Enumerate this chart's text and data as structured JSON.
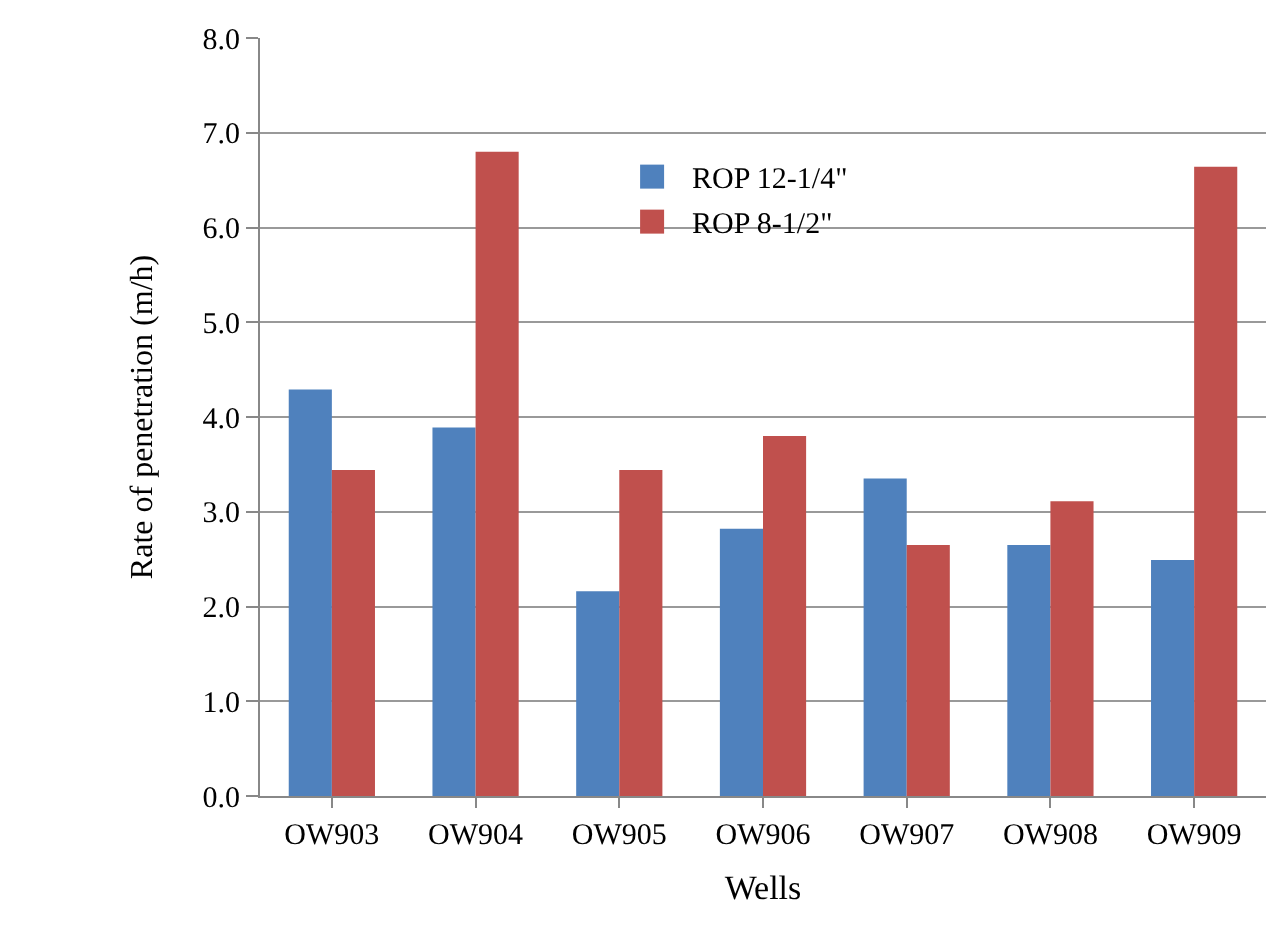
{
  "chart_data": {
    "type": "bar",
    "xlabel": "Wells",
    "ylabel": "Rate of penetration (m/h)",
    "categories": [
      "OW903",
      "OW904",
      "OW905",
      "OW906",
      "OW907",
      "OW908",
      "OW909"
    ],
    "series": [
      {
        "name": "ROP 12-1/4\"",
        "color": "#4f81bd",
        "values": [
          4.29,
          3.89,
          2.16,
          2.82,
          3.35,
          2.65,
          2.49
        ]
      },
      {
        "name": "ROP 8-1/2\"",
        "color": "#c0504d",
        "values": [
          3.44,
          6.8,
          3.44,
          3.8,
          2.65,
          3.11,
          6.64
        ]
      }
    ],
    "ylim": [
      0,
      8
    ],
    "yticks": [
      {
        "value": 0,
        "label": "0.0"
      },
      {
        "value": 1,
        "label": "1.0"
      },
      {
        "value": 2,
        "label": "2.0"
      },
      {
        "value": 3,
        "label": "3.0"
      },
      {
        "value": 4,
        "label": "4.0"
      },
      {
        "value": 5,
        "label": "5.0"
      },
      {
        "value": 6,
        "label": "6.0"
      },
      {
        "value": 7,
        "label": "7.0"
      },
      {
        "value": 8,
        "label": "8.0"
      }
    ],
    "grid": "y",
    "legend": "top"
  }
}
